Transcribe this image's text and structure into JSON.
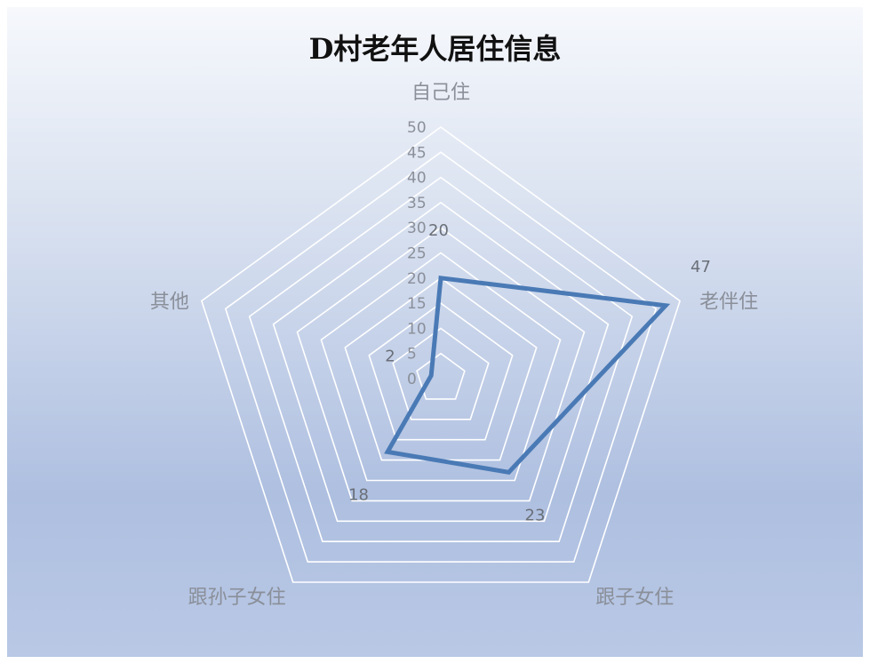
{
  "chart_data": {
    "type": "radar",
    "title": "D村老年人居住信息",
    "categories": [
      "自己住",
      "老伴住",
      "跟子女住",
      "跟孙子女住",
      "其他"
    ],
    "series": [
      {
        "values": [
          20,
          47,
          23,
          18,
          2
        ]
      }
    ],
    "data_labels": [
      "20",
      "47",
      "23",
      "18",
      "2"
    ],
    "r_ticks": [
      "0",
      "5",
      "10",
      "15",
      "20",
      "25",
      "30",
      "35",
      "40",
      "45",
      "50"
    ],
    "rlim": [
      0,
      50
    ],
    "grid": true,
    "legend": false,
    "colors": {
      "series": "#4a7ab5",
      "grid": "#ffffff",
      "label": "#8a8f99",
      "title": "#111111"
    }
  }
}
